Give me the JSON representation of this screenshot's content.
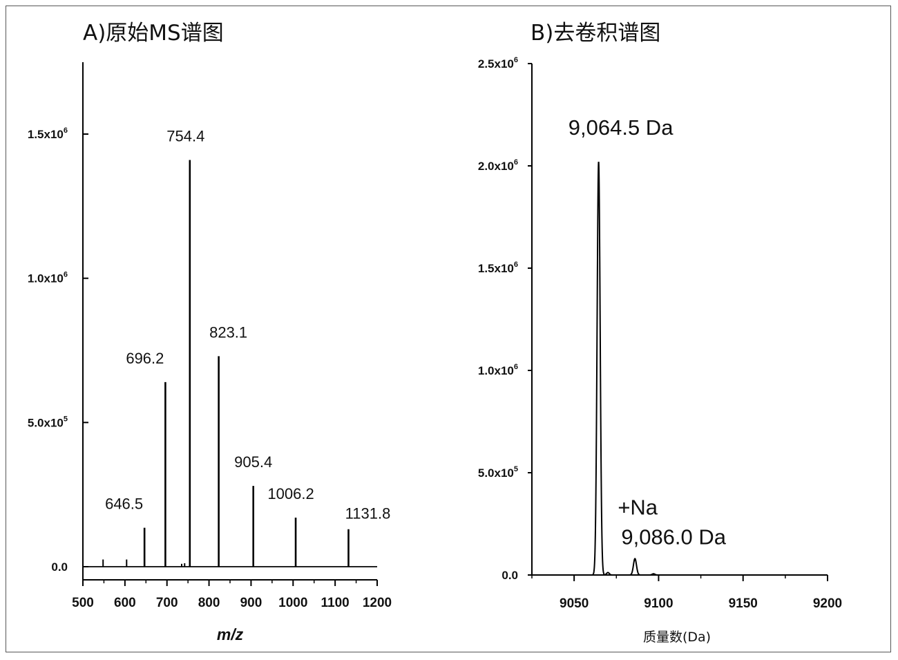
{
  "chart_data": [
    {
      "type": "bar",
      "title": "A)原始MS谱图",
      "xlabel": "m/z",
      "ylabel": "",
      "xlim": [
        500,
        1200
      ],
      "ylim": [
        0,
        1750000
      ],
      "xticks": [
        "500",
        "600",
        "700",
        "800",
        "900",
        "1000",
        "1100",
        "1200"
      ],
      "yticks": [
        {
          "label": "0.0",
          "value": 0
        },
        {
          "label": "5.0x10",
          "exp": "5",
          "value": 500000
        },
        {
          "label": "1.0x10",
          "exp": "6",
          "value": 1000000
        },
        {
          "label": "1.5x10",
          "exp": "6",
          "value": 1500000
        }
      ],
      "peaks": [
        {
          "x": 646.5,
          "y": 135000,
          "label": "646.5"
        },
        {
          "x": 696.2,
          "y": 640000,
          "label": "696.2"
        },
        {
          "x": 754.4,
          "y": 1410000,
          "label": "754.4"
        },
        {
          "x": 823.1,
          "y": 730000,
          "label": "823.1"
        },
        {
          "x": 905.4,
          "y": 280000,
          "label": "905.4"
        },
        {
          "x": 1006.2,
          "y": 170000,
          "label": "1006.2"
        },
        {
          "x": 1131.8,
          "y": 130000,
          "label": "1131.8"
        }
      ],
      "minor_peaks": [
        {
          "x": 548,
          "y": 25000
        },
        {
          "x": 604,
          "y": 25000
        },
        {
          "x": 735,
          "y": 10000
        },
        {
          "x": 742,
          "y": 12000
        }
      ]
    },
    {
      "type": "line",
      "title": "B)去卷积谱图",
      "xlabel": "质量数(Da)",
      "ylabel": "",
      "xlim": [
        9025,
        9200
      ],
      "ylim": [
        0,
        2500000
      ],
      "xticks": [
        "9050",
        "9100",
        "9150",
        "9200"
      ],
      "yticks": [
        {
          "label": "0.0",
          "value": 0
        },
        {
          "label": "5.0x10",
          "exp": "5",
          "value": 500000
        },
        {
          "label": "1.0x10",
          "exp": "6",
          "value": 1000000
        },
        {
          "label": "1.5x10",
          "exp": "6",
          "value": 1500000
        },
        {
          "label": "2.0x10",
          "exp": "6",
          "value": 2000000
        },
        {
          "label": "2.5x10",
          "exp": "6",
          "value": 2500000
        }
      ],
      "peaks": [
        {
          "x": 9064.5,
          "y": 2020000,
          "width": 0.9
        },
        {
          "x": 9086.0,
          "y": 80000,
          "width": 0.9
        },
        {
          "x": 9070,
          "y": 12000,
          "width": 0.8
        },
        {
          "x": 9097,
          "y": 6000,
          "width": 0.8
        }
      ],
      "annotations": [
        {
          "text": "9,064.5 Da",
          "x": 9064.5,
          "y": 2020000
        },
        {
          "text": "+Na",
          "x": 9086.0,
          "y": 80000
        },
        {
          "text": "9,086.0 Da",
          "x": 9086.0,
          "y": 80000
        }
      ]
    }
  ]
}
